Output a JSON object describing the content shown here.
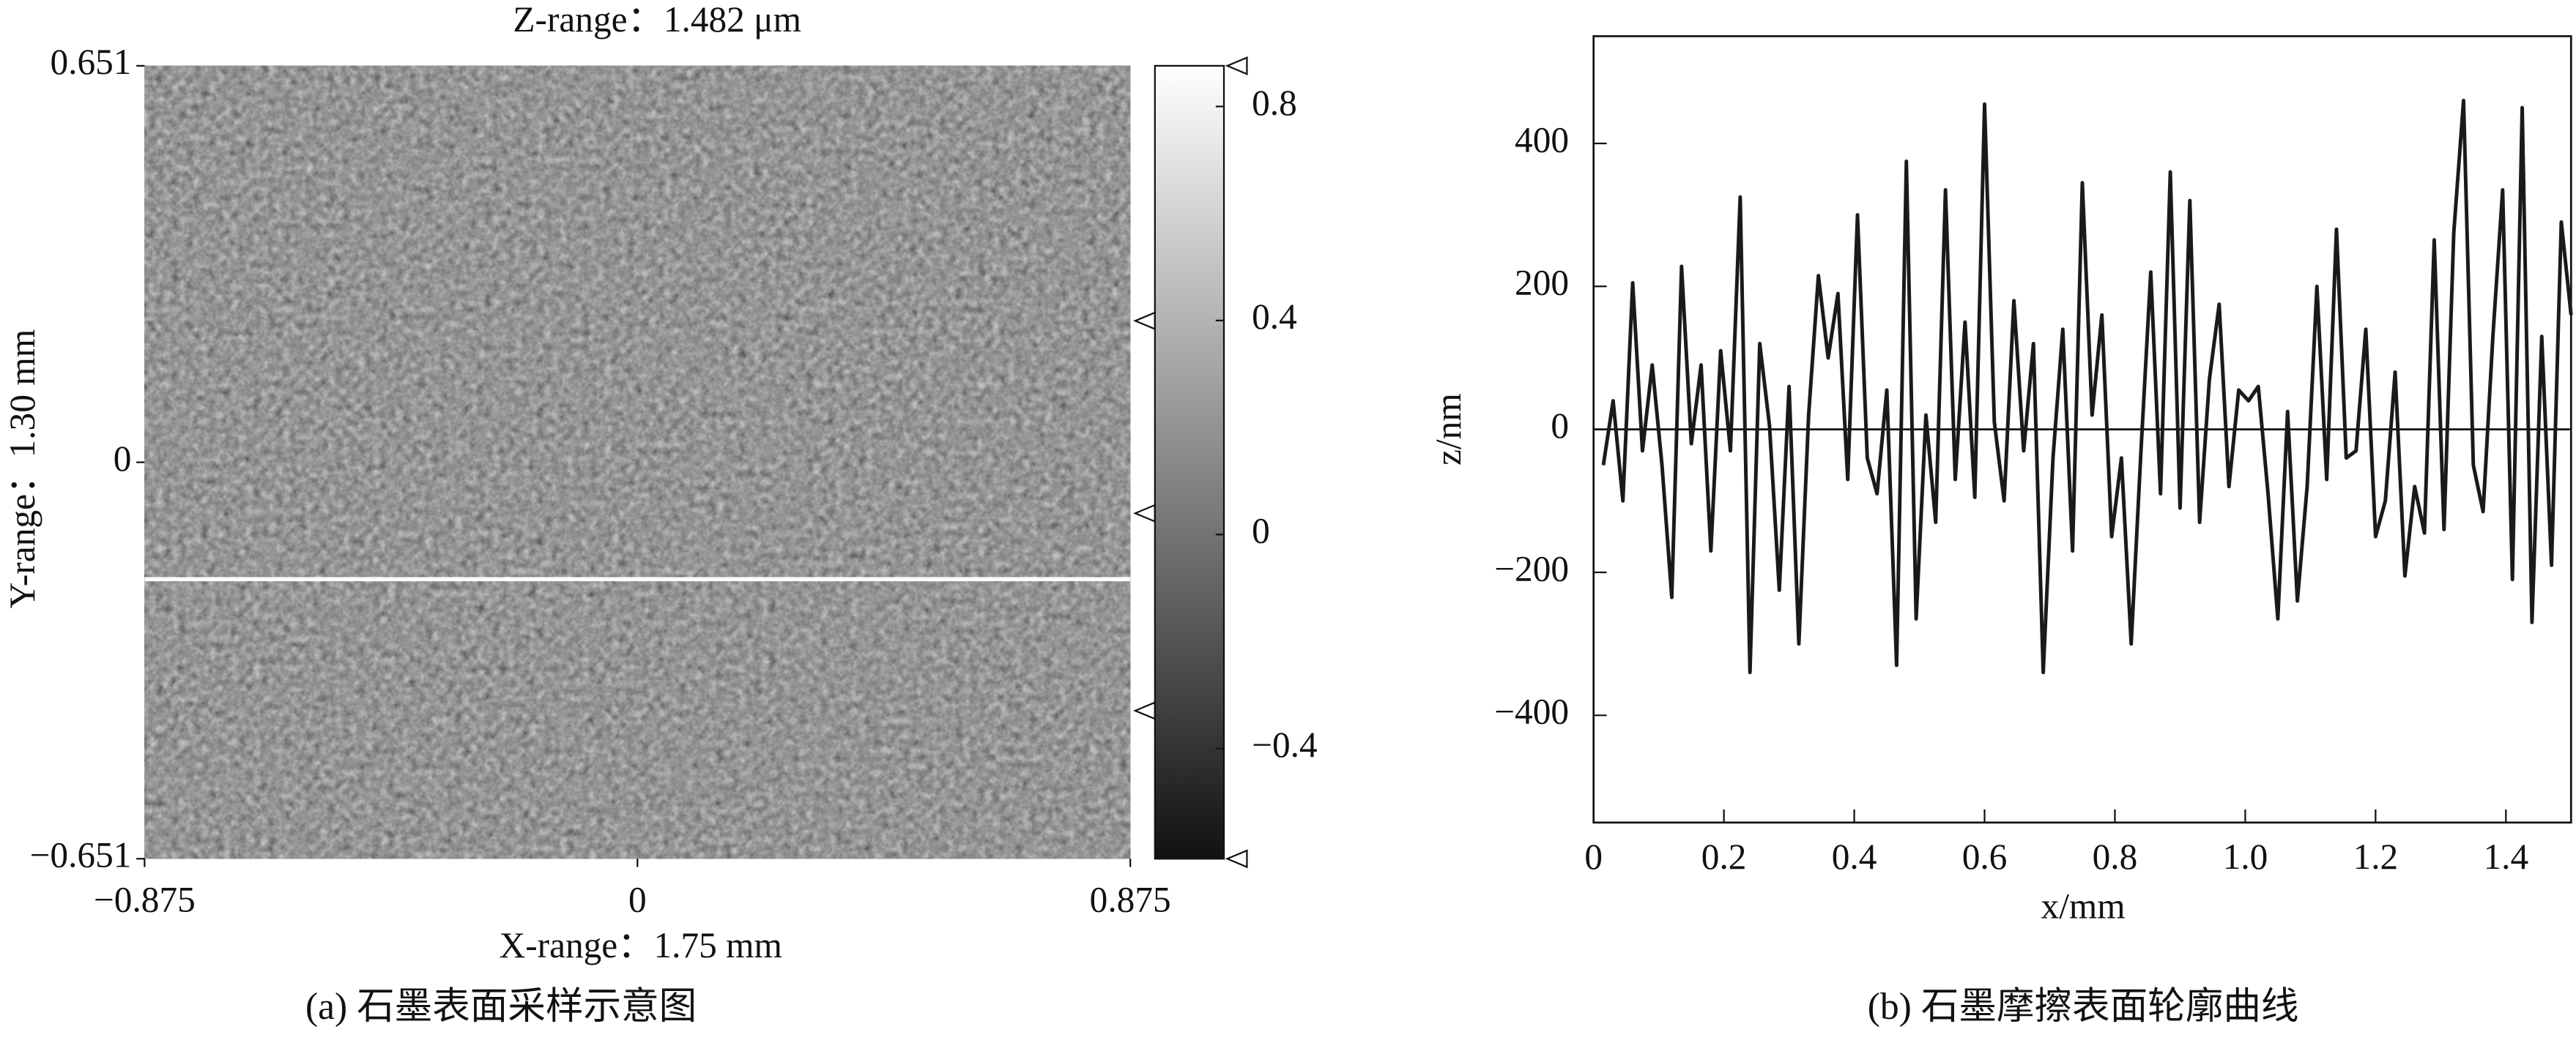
{
  "chart_data": [
    {
      "type": "image",
      "title": "Z-range：1.482 μm",
      "x_label": "X-range：1.75 mm",
      "y_label": "Y-range：1.30 mm",
      "caption": "(a) 石墨表面采样示意图",
      "xlim": [
        -0.875,
        0.875
      ],
      "ylim": [
        -0.651,
        0.651
      ],
      "xticks": [
        {
          "value": -0.875,
          "label": "−0.875"
        },
        0,
        0.875
      ],
      "yticks": [
        {
          "value": -0.651,
          "label": "−0.651"
        },
        0,
        0.651
      ],
      "hline": -0.192,
      "colorbar": {
        "zlim": [
          -0.606,
          0.876
        ],
        "ticks": [
          0.8,
          0.4,
          0,
          {
            "value": -0.4,
            "label": "−0.4"
          }
        ],
        "colors": [
          "#141210",
          "#ffffff"
        ]
      }
    },
    {
      "type": "line",
      "x_label": "x/mm",
      "y_label": "z/nm",
      "caption": "(b) 石墨摩擦表面轮廓曲线",
      "xlim": [
        0,
        1.5
      ],
      "ylim": [
        -550,
        550
      ],
      "xticks": [
        0,
        0.2,
        0.4,
        0.6,
        0.8,
        {
          "value": 1.0,
          "label": "1.0"
        },
        1.2,
        1.4
      ],
      "yticks": [
        {
          "value": -400,
          "label": "−400"
        },
        {
          "value": -200,
          "label": "−200"
        },
        0,
        200,
        400
      ],
      "axhline": 0,
      "color": "#1a1a1a",
      "x": [
        0.015,
        0.03,
        0.045,
        0.06,
        0.075,
        0.09,
        0.105,
        0.12,
        0.135,
        0.15,
        0.165,
        0.18,
        0.195,
        0.21,
        0.225,
        0.24,
        0.255,
        0.27,
        0.285,
        0.3,
        0.315,
        0.33,
        0.345,
        0.36,
        0.375,
        0.39,
        0.405,
        0.42,
        0.435,
        0.45,
        0.465,
        0.48,
        0.495,
        0.51,
        0.525,
        0.54,
        0.555,
        0.57,
        0.585,
        0.6,
        0.615,
        0.63,
        0.645,
        0.66,
        0.675,
        0.69,
        0.705,
        0.72,
        0.735,
        0.75,
        0.765,
        0.78,
        0.795,
        0.81,
        0.825,
        0.84,
        0.855,
        0.87,
        0.885,
        0.9,
        0.915,
        0.93,
        0.945,
        0.96,
        0.975,
        0.99,
        1.005,
        1.02,
        1.035,
        1.05,
        1.065,
        1.08,
        1.095,
        1.11,
        1.125,
        1.14,
        1.155,
        1.17,
        1.185,
        1.2,
        1.215,
        1.23,
        1.245,
        1.26,
        1.275,
        1.29,
        1.305,
        1.32,
        1.335,
        1.35,
        1.365,
        1.38,
        1.395,
        1.41,
        1.425,
        1.44,
        1.455,
        1.47,
        1.485,
        1.5
      ],
      "values": [
        -50,
        40,
        -100,
        205,
        -30,
        90,
        -50,
        -235,
        228,
        -20,
        90,
        -170,
        110,
        -30,
        325,
        -340,
        120,
        5,
        -225,
        60,
        -300,
        20,
        215,
        100,
        190,
        -70,
        300,
        -40,
        -90,
        55,
        -330,
        375,
        -265,
        20,
        -130,
        335,
        -70,
        150,
        -95,
        455,
        10,
        -100,
        180,
        -30,
        120,
        -340,
        -40,
        140,
        -170,
        345,
        20,
        160,
        -150,
        -40,
        -300,
        -30,
        220,
        -90,
        360,
        -110,
        320,
        -130,
        70,
        175,
        -80,
        55,
        40,
        60,
        -90,
        -265,
        25,
        -240,
        -80,
        200,
        -70,
        280,
        -40,
        -30,
        140,
        -150,
        -100,
        80,
        -205,
        -80,
        -145,
        265,
        -140,
        275,
        460,
        -50,
        -115,
        130,
        335,
        -210,
        450,
        -270,
        130,
        -190,
        290,
        160
      ]
    }
  ]
}
